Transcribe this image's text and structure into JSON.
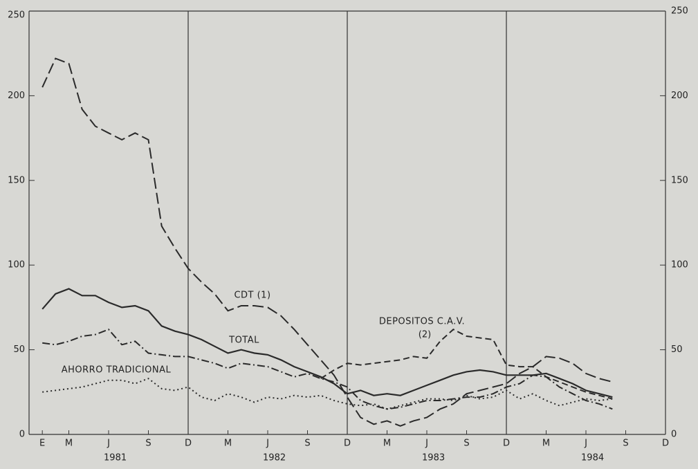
{
  "chart_data": {
    "type": "line",
    "x": [
      0,
      1,
      2,
      3,
      4,
      5,
      6,
      7,
      8,
      9,
      10,
      11,
      12,
      13,
      14,
      15,
      16,
      17,
      18,
      19,
      20,
      21,
      22,
      23,
      24,
      25,
      26,
      27,
      28,
      29,
      30,
      31,
      32,
      33,
      34,
      35,
      36,
      37,
      38,
      39,
      40,
      41,
      42,
      43
    ],
    "xlim": [
      -1,
      47
    ],
    "xticks": [
      {
        "value": 0,
        "label": "E"
      },
      {
        "value": 2,
        "label": "M"
      },
      {
        "value": 5,
        "label": "J"
      },
      {
        "value": 8,
        "label": "S"
      },
      {
        "value": 11,
        "label": "D"
      },
      {
        "value": 14,
        "label": "M"
      },
      {
        "value": 17,
        "label": "J"
      },
      {
        "value": 20,
        "label": "S"
      },
      {
        "value": 23,
        "label": "D"
      },
      {
        "value": 26,
        "label": "M"
      },
      {
        "value": 29,
        "label": "J"
      },
      {
        "value": 32,
        "label": "S"
      },
      {
        "value": 35,
        "label": "D"
      },
      {
        "value": 38,
        "label": "M"
      },
      {
        "value": 41,
        "label": "J"
      },
      {
        "value": 44,
        "label": "S"
      },
      {
        "value": 47,
        "label": "D"
      }
    ],
    "years": [
      "1981",
      "1982",
      "1983",
      "1984"
    ],
    "ylim": [
      0,
      250
    ],
    "yticks": [
      0,
      50,
      100,
      150,
      200,
      250
    ],
    "y2lim": [
      0,
      250
    ],
    "y2ticks": [
      0,
      50,
      100,
      150,
      200,
      250
    ],
    "series": [
      {
        "name": "CDT (1)",
        "color": "#2a2a2a",
        "line_style": "dashed",
        "values": [
          205,
          222,
          219,
          192,
          182,
          178,
          174,
          178,
          174,
          123,
          110,
          98,
          90,
          83,
          73,
          76,
          76,
          75,
          70,
          62,
          53,
          44,
          35,
          22,
          10,
          6,
          8,
          5,
          8,
          10,
          15,
          18,
          24,
          26,
          28,
          30,
          36,
          40,
          46,
          45,
          42,
          36,
          33,
          31
        ]
      },
      {
        "name": "TOTAL",
        "color": "#2a2a2a",
        "line_style": "solid",
        "values": [
          74,
          83,
          86,
          82,
          82,
          78,
          75,
          76,
          73,
          64,
          61,
          59,
          56,
          52,
          48,
          50,
          48,
          47,
          44,
          40,
          37,
          34,
          30,
          24,
          26,
          23,
          24,
          23,
          26,
          29,
          32,
          35,
          37,
          38,
          37,
          35,
          35,
          35,
          36,
          33,
          30,
          26,
          24,
          22
        ]
      },
      {
        "color": "#2a2a2a",
        "line_style": "dash-dot",
        "values": [
          54,
          53,
          55,
          58,
          59,
          62,
          53,
          55,
          48,
          47,
          46,
          46,
          44,
          42,
          39,
          42,
          41,
          40,
          37,
          34,
          36,
          33,
          31,
          28,
          20,
          17,
          15,
          16,
          18,
          20,
          20,
          21,
          22,
          22,
          24,
          28,
          30,
          35,
          34,
          28,
          24,
          20,
          18,
          15
        ]
      },
      {
        "name": "AHORRO TRADICIONAL",
        "color": "#2a2a2a",
        "line_style": "dotted",
        "values": [
          25,
          26,
          27,
          28,
          30,
          32,
          32,
          30,
          33,
          27,
          26,
          28,
          22,
          20,
          24,
          22,
          19,
          22,
          21,
          23,
          22,
          23,
          20,
          18,
          17,
          18,
          15,
          17,
          19,
          21,
          21,
          20,
          23,
          21,
          22,
          26,
          21,
          24,
          20,
          17,
          19,
          21,
          20,
          21
        ]
      },
      {
        "name": "DEPOSITOS C.A.V.",
        "color": "#2a2a2a",
        "line_style": "short-dashed",
        "values": [
          null,
          null,
          null,
          null,
          null,
          null,
          null,
          null,
          null,
          null,
          null,
          null,
          null,
          null,
          null,
          null,
          null,
          null,
          null,
          null,
          null,
          33,
          38,
          42,
          41,
          42,
          43,
          44,
          46,
          45,
          55,
          62,
          58,
          57,
          56,
          41,
          40,
          40,
          34,
          31,
          28,
          25,
          23,
          21
        ]
      }
    ],
    "annotations": [
      "(2)"
    ]
  }
}
